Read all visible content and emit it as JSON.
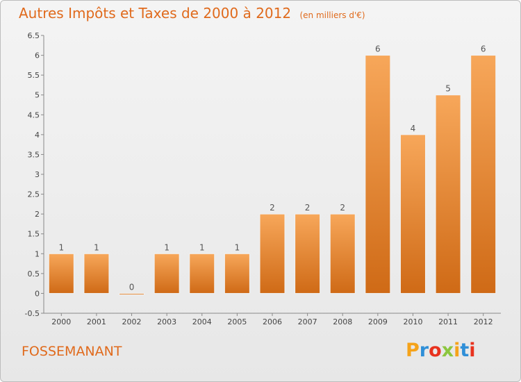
{
  "header": {
    "title": "Autres Impôts et Taxes de 2000 à 2012",
    "subtitle": "(en milliers d'€)"
  },
  "footer": {
    "commune": "FOSSEMANANT",
    "logo_letters": [
      "P",
      "r",
      "o",
      "x",
      "i",
      "t",
      "i"
    ],
    "logo_colors": [
      "#f5a31a",
      "#2f8fd8",
      "#e8321e",
      "#8cc63f",
      "#f5a31a",
      "#2f8fd8",
      "#e8321e"
    ]
  },
  "colors": {
    "bar_top": "#f7a75a",
    "bar_bottom": "#cf6a16",
    "text": "#e06a1c",
    "axis": "#888888"
  },
  "chart_data": {
    "type": "bar",
    "title": "Autres Impôts et Taxes de 2000 à 2012",
    "subtitle": "(en milliers d'€)",
    "xlabel": "",
    "ylabel": "",
    "categories": [
      "2000",
      "2001",
      "2002",
      "2003",
      "2004",
      "2005",
      "2006",
      "2007",
      "2008",
      "2009",
      "2010",
      "2011",
      "2012"
    ],
    "values": [
      1,
      1,
      0,
      1,
      1,
      1,
      2,
      2,
      2,
      6,
      4,
      5,
      6
    ],
    "data_labels": [
      "1",
      "1",
      "0",
      "1",
      "1",
      "1",
      "2",
      "2",
      "2",
      "6",
      "4",
      "5",
      "6"
    ],
    "ylim": [
      -0.5,
      6.5
    ],
    "yticks": [
      "-0.5",
      "0",
      "0.5",
      "1",
      "1.5",
      "2",
      "2.5",
      "3",
      "3.5",
      "4",
      "4.5",
      "5",
      "5.5",
      "6",
      "6.5"
    ],
    "grid": false,
    "legend": "none"
  }
}
